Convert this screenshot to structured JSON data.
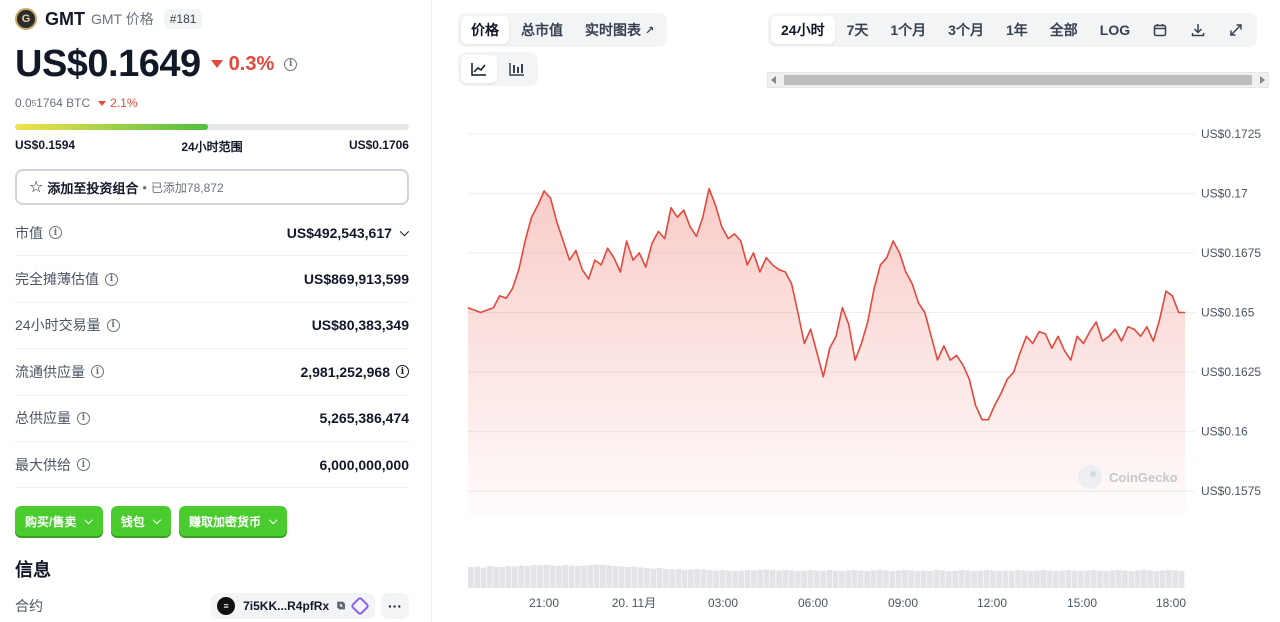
{
  "coin": {
    "logo_text": "G",
    "name": "GMT",
    "subtitle": "GMT 价格",
    "rank": "#181",
    "price": "US$0.1649",
    "change_24h": "0.3%",
    "btc_price_prefix": "0.0",
    "btc_price_sub": "5",
    "btc_price_suffix": "1764 BTC",
    "btc_change": "2.1%"
  },
  "range_24h": {
    "low": "US$0.1594",
    "label": "24小时范围",
    "high": "US$0.1706",
    "position": 0.49
  },
  "portfolio": {
    "label": "添加至投资组合",
    "added_text": "已添加78,872"
  },
  "stats": [
    {
      "label": "市值",
      "value": "US$492,543,617"
    },
    {
      "label": "完全摊薄估值",
      "value": "US$869,913,599"
    },
    {
      "label": "24小时交易量",
      "value": "US$80,383,349"
    },
    {
      "label": "流通供应量",
      "value": "2,981,252,968"
    },
    {
      "label": "总供应量",
      "value": "5,265,386,474"
    },
    {
      "label": "最大供给",
      "value": "6,000,000,000"
    }
  ],
  "actions": [
    "购买/售卖",
    "钱包",
    "赚取加密货币"
  ],
  "info": {
    "title": "信息",
    "contract_label": "合约",
    "contract_address": "7i5KK...R4pfRx",
    "more": "···"
  },
  "chart_tabs": [
    "价格",
    "总市值",
    "实时图表"
  ],
  "time_tabs": [
    "24小时",
    "7天",
    "1个月",
    "3个月",
    "1年",
    "全部",
    "LOG"
  ],
  "watermark": "CoinGecko",
  "colors": {
    "up": "#4bcc2e",
    "down": "#e5483b",
    "line": "#e5483b"
  },
  "chart_data": {
    "type": "area",
    "title": "",
    "xlabel": "",
    "ylabel": "",
    "ylim": [
      0.1565,
      0.1735
    ],
    "y_ticks": [
      0.1575,
      0.16,
      0.1625,
      0.165,
      0.1675,
      0.17,
      0.1725
    ],
    "y_tick_labels": [
      "US$0.1575",
      "US$0.16",
      "US$0.1625",
      "US$0.165",
      "US$0.1675",
      "US$0.17",
      "US$0.1725"
    ],
    "x_ticks": [
      "21:00",
      "20. 11月",
      "03:00",
      "06:00",
      "09:00",
      "12:00",
      "15:00",
      "18:00"
    ],
    "series": [
      {
        "values": [
          0.1652,
          0.1651,
          0.165,
          0.1651,
          0.1652,
          0.1657,
          0.1656,
          0.166,
          0.1668,
          0.168,
          0.169,
          0.1695,
          0.1701,
          0.1698,
          0.1688,
          0.168,
          0.1672,
          0.1676,
          0.1668,
          0.1664,
          0.1672,
          0.167,
          0.1677,
          0.1673,
          0.1667,
          0.168,
          0.1672,
          0.1675,
          0.1669,
          0.1679,
          0.1684,
          0.1681,
          0.1694,
          0.169,
          0.1693,
          0.1686,
          0.1682,
          0.169,
          0.1702,
          0.1695,
          0.1686,
          0.1681,
          0.1683,
          0.168,
          0.167,
          0.1675,
          0.1667,
          0.1673,
          0.167,
          0.1668,
          0.1667,
          0.1662,
          0.165,
          0.1637,
          0.1643,
          0.1633,
          0.1623,
          0.1635,
          0.164,
          0.1652,
          0.1645,
          0.163,
          0.1637,
          0.1646,
          0.166,
          0.167,
          0.1673,
          0.168,
          0.1675,
          0.1667,
          0.1662,
          0.1654,
          0.165,
          0.164,
          0.163,
          0.1636,
          0.163,
          0.1632,
          0.1628,
          0.1622,
          0.1611,
          0.1605,
          0.1605,
          0.1611,
          0.1616,
          0.1622,
          0.1625,
          0.1633,
          0.164,
          0.1637,
          0.1642,
          0.1641,
          0.1635,
          0.164,
          0.1634,
          0.163,
          0.164,
          0.1637,
          0.1642,
          0.1646,
          0.1638,
          0.164,
          0.1643,
          0.1638,
          0.1644,
          0.1643,
          0.164,
          0.1644,
          0.1638,
          0.1647,
          0.1659,
          0.1657,
          0.165,
          0.165
        ]
      }
    ],
    "volume": [
      0.42,
      0.43,
      0.41,
      0.44,
      0.43,
      0.42,
      0.44,
      0.43,
      0.45,
      0.44,
      0.46,
      0.45,
      0.46,
      0.45,
      0.44,
      0.46,
      0.45,
      0.44,
      0.45,
      0.46,
      0.47,
      0.46,
      0.45,
      0.44,
      0.43,
      0.42,
      0.43,
      0.41,
      0.4,
      0.39,
      0.4,
      0.38,
      0.37,
      0.38,
      0.36,
      0.37,
      0.38,
      0.37,
      0.36,
      0.35,
      0.36,
      0.35,
      0.34,
      0.35,
      0.36,
      0.35,
      0.36,
      0.37,
      0.36,
      0.35,
      0.36,
      0.35,
      0.34,
      0.35,
      0.36,
      0.35,
      0.34,
      0.36,
      0.35,
      0.34,
      0.35,
      0.36,
      0.35,
      0.34,
      0.35,
      0.36,
      0.35,
      0.34,
      0.35,
      0.36,
      0.35,
      0.34,
      0.35,
      0.34,
      0.36,
      0.35,
      0.34,
      0.35,
      0.36,
      0.35,
      0.34,
      0.35,
      0.36,
      0.35,
      0.34,
      0.35,
      0.34,
      0.36,
      0.35,
      0.34,
      0.35,
      0.36,
      0.35,
      0.34,
      0.35,
      0.36,
      0.35,
      0.34,
      0.35,
      0.36,
      0.35,
      0.34,
      0.35,
      0.36,
      0.35,
      0.34,
      0.35,
      0.36,
      0.35,
      0.34,
      0.35,
      0.36,
      0.35,
      0.34
    ]
  }
}
